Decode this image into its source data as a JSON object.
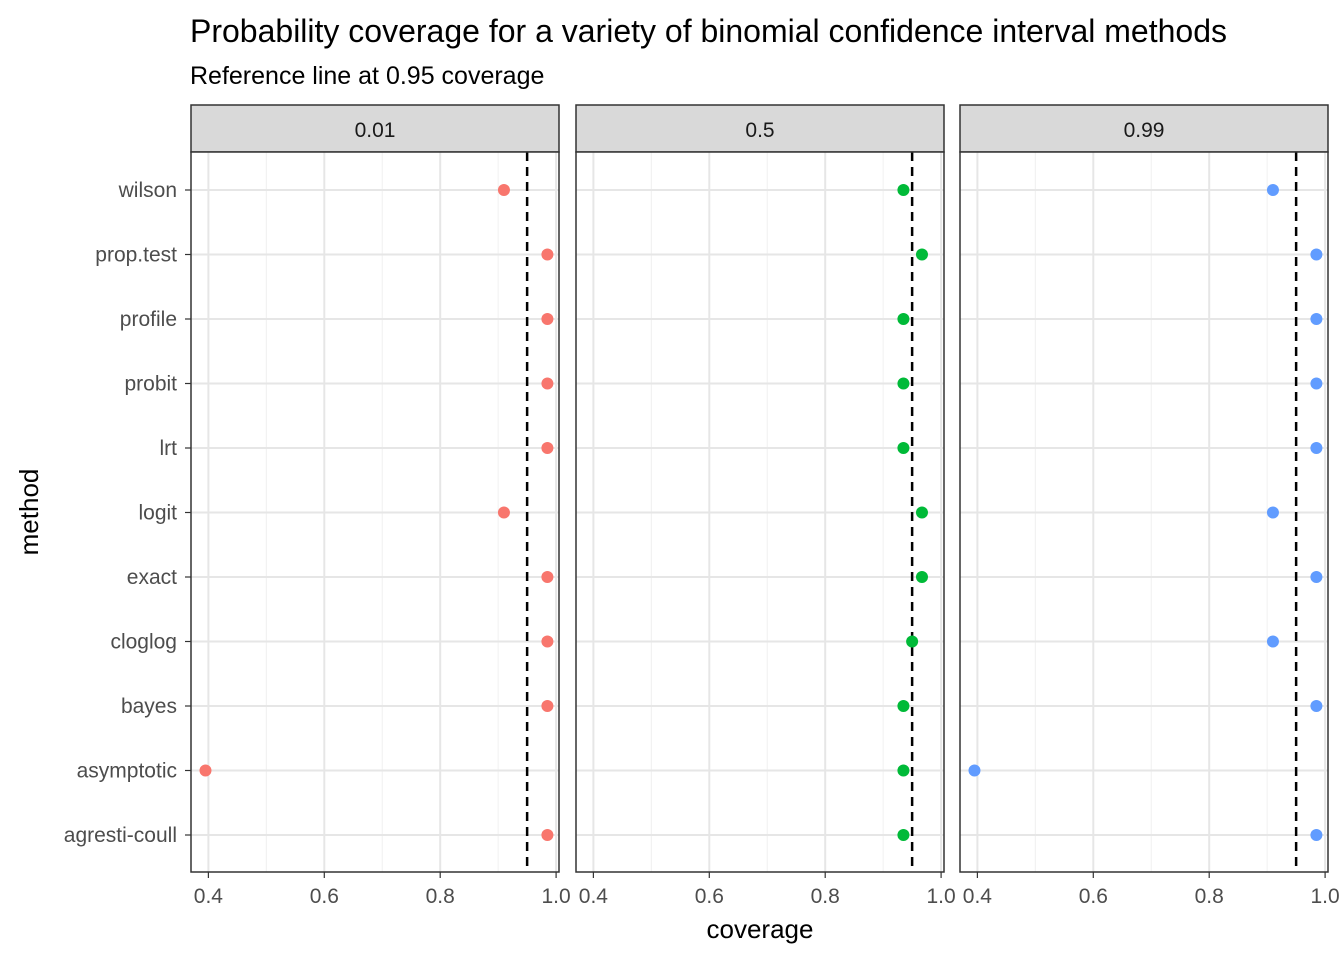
{
  "chart_data": {
    "type": "scatter",
    "title": "Probability coverage for a variety of binomial confidence interval methods",
    "subtitle": "Reference line at 0.95 coverage",
    "xlabel": "coverage",
    "ylabel": "method",
    "xlim": [
      0.37,
      1.005
    ],
    "x_ticks": [
      0.4,
      0.6,
      0.8,
      1.0
    ],
    "x_tick_labels": [
      "0.4",
      "0.6",
      "0.8",
      "1.0"
    ],
    "reference_line": 0.95,
    "grid": true,
    "legend": "none",
    "categories": [
      "wilson",
      "prop.test",
      "profile",
      "probit",
      "lrt",
      "logit",
      "exact",
      "cloglog",
      "bayes",
      "asymptotic",
      "agresti-coull"
    ],
    "facets": [
      {
        "label": "0.01",
        "color": "#F8766D",
        "values": [
          0.91,
          0.985,
          0.985,
          0.985,
          0.985,
          0.91,
          0.985,
          0.985,
          0.985,
          0.395,
          0.985
        ]
      },
      {
        "label": "0.5",
        "color": "#00BA38",
        "values": [
          0.935,
          0.967,
          0.935,
          0.935,
          0.935,
          0.967,
          0.967,
          0.95,
          0.935,
          0.935,
          0.935
        ]
      },
      {
        "label": "0.99",
        "color": "#619CFF",
        "values": [
          0.91,
          0.985,
          0.985,
          0.985,
          0.985,
          0.91,
          0.985,
          0.91,
          0.985,
          0.395,
          0.985
        ]
      }
    ]
  }
}
